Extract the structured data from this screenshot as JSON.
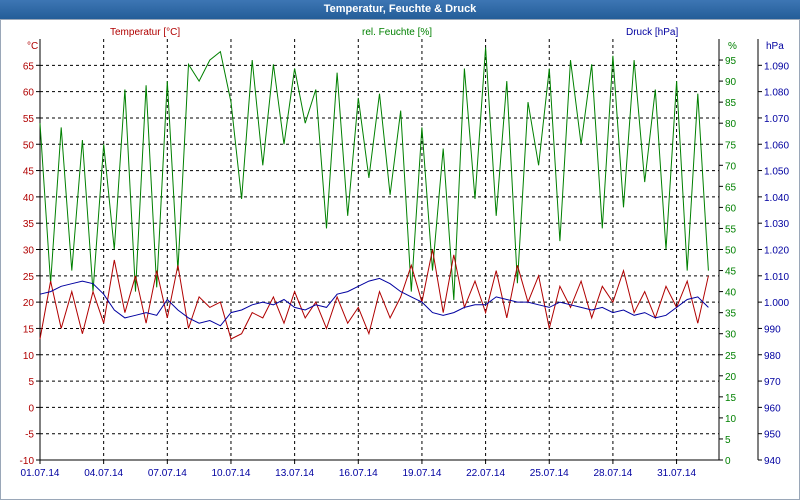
{
  "window": {
    "title": "Temperatur, Feuchte & Druck"
  },
  "chart_data": {
    "type": "line",
    "title": "Temperatur, Feuchte & Druck",
    "colors": {
      "temperature": "#b00000",
      "humidity": "#008000",
      "pressure": "#0000a0"
    },
    "grid": true,
    "x_tick_labels": [
      "01.07.14",
      "04.07.14",
      "07.07.14",
      "10.07.14",
      "13.07.14",
      "16.07.14",
      "19.07.14",
      "22.07.14",
      "25.07.14",
      "28.07.14",
      "31.07.14"
    ],
    "x_range_days": [
      1,
      33
    ],
    "axes": {
      "temperature": {
        "label": "Temperatur [°C]",
        "unit": "°C",
        "ylim": [
          -10,
          70
        ],
        "ticks": [
          "-10",
          "-5",
          "0",
          "5",
          "10",
          "15",
          "20",
          "25",
          "30",
          "35",
          "40",
          "45",
          "50",
          "55",
          "60",
          "65"
        ]
      },
      "humidity": {
        "label": "rel. Feuchte [%]",
        "unit": "%",
        "ylim": [
          0,
          100
        ],
        "ticks": [
          "0",
          "5",
          "10",
          "15",
          "20",
          "25",
          "30",
          "35",
          "40",
          "45",
          "50",
          "55",
          "60",
          "65",
          "70",
          "75",
          "80",
          "85",
          "90",
          "95"
        ]
      },
      "pressure": {
        "label": "Druck [hPa]",
        "unit": "hPa",
        "ylim": [
          940,
          1100
        ],
        "ticks": [
          "940",
          "950",
          "960",
          "970",
          "980",
          "990",
          "1.000",
          "1.010",
          "1.020",
          "1.030",
          "1.040",
          "1.050",
          "1.060",
          "1.070",
          "1.080",
          "1.090"
        ]
      }
    },
    "series": [
      {
        "name": "Temperatur [°C]",
        "axis": "temperature",
        "x": [
          1,
          1.5,
          2,
          2.5,
          3,
          3.5,
          4,
          4.5,
          5,
          5.5,
          6,
          6.5,
          7,
          7.5,
          8,
          8.5,
          9,
          9.5,
          10,
          10.5,
          11,
          11.5,
          12,
          12.5,
          13,
          13.5,
          14,
          14.5,
          15,
          15.5,
          16,
          16.5,
          17,
          17.5,
          18,
          18.5,
          19,
          19.5,
          20,
          20.5,
          21,
          21.5,
          22,
          22.5,
          23,
          23.5,
          24,
          24.5,
          25,
          25.5,
          26,
          26.5,
          27,
          27.5,
          28,
          28.5,
          29,
          29.5,
          30,
          30.5,
          31,
          31.5,
          32,
          32.5
        ],
        "values": [
          13,
          24,
          15,
          22,
          14,
          22,
          16,
          28,
          18,
          25,
          16,
          26,
          17,
          27,
          15,
          21,
          19,
          20,
          13,
          14,
          18,
          17,
          21,
          16,
          22,
          17,
          20,
          15,
          21,
          16,
          19,
          14,
          22,
          17,
          21,
          27,
          20,
          30,
          18,
          29,
          19,
          24,
          18,
          26,
          17,
          27,
          20,
          25,
          15,
          23,
          19,
          24,
          17,
          23,
          20,
          26,
          18,
          22,
          17,
          23,
          19,
          24,
          16,
          25
        ]
      },
      {
        "name": "rel. Feuchte [%]",
        "axis": "humidity",
        "x": [
          1,
          1.5,
          2,
          2.5,
          3,
          3.5,
          4,
          4.5,
          5,
          5.5,
          6,
          6.5,
          7,
          7.5,
          8,
          8.5,
          9,
          9.5,
          10,
          10.5,
          11,
          11.5,
          12,
          12.5,
          13,
          13.5,
          14,
          14.5,
          15,
          15.5,
          16,
          16.5,
          17,
          17.5,
          18,
          18.5,
          19,
          19.5,
          20,
          20.5,
          21,
          21.5,
          22,
          22.5,
          23,
          23.5,
          24,
          24.5,
          25,
          25.5,
          26,
          26.5,
          27,
          27.5,
          28,
          28.5,
          29,
          29.5,
          30,
          30.5,
          31,
          31.5,
          32,
          32.5
        ],
        "values": [
          80,
          42,
          79,
          45,
          76,
          40,
          75,
          50,
          88,
          40,
          89,
          41,
          90,
          45,
          94,
          90,
          95,
          97,
          85,
          62,
          95,
          70,
          94,
          75,
          93,
          80,
          88,
          55,
          92,
          58,
          86,
          67,
          87,
          63,
          83,
          40,
          79,
          45,
          74,
          38,
          93,
          62,
          98,
          58,
          90,
          42,
          85,
          70,
          93,
          52,
          95,
          75,
          94,
          55,
          96,
          60,
          95,
          66,
          88,
          50,
          90,
          45,
          87,
          45
        ]
      },
      {
        "name": "Druck [hPa]",
        "axis": "pressure",
        "x": [
          1,
          1.5,
          2,
          2.5,
          3,
          3.5,
          4,
          4.5,
          5,
          5.5,
          6,
          6.5,
          7,
          7.5,
          8,
          8.5,
          9,
          9.5,
          10,
          10.5,
          11,
          11.5,
          12,
          12.5,
          13,
          13.5,
          14,
          14.5,
          15,
          15.5,
          16,
          16.5,
          17,
          17.5,
          18,
          18.5,
          19,
          19.5,
          20,
          20.5,
          21,
          21.5,
          22,
          22.5,
          23,
          23.5,
          24,
          24.5,
          25,
          25.5,
          26,
          26.5,
          27,
          27.5,
          28,
          28.5,
          29,
          29.5,
          30,
          30.5,
          31,
          31.5,
          32,
          32.5
        ],
        "values": [
          1003,
          1004,
          1006,
          1007,
          1008,
          1007,
          1003,
          997,
          994,
          995,
          996,
          995,
          1001,
          997,
          994,
          992,
          993,
          991,
          996,
          997,
          999,
          1000,
          999,
          1001,
          998,
          997,
          999,
          998,
          1003,
          1004,
          1006,
          1008,
          1009,
          1007,
          1004,
          1002,
          1000,
          996,
          995,
          996,
          998,
          999,
          999,
          1002,
          1001,
          1000,
          1000,
          999,
          998,
          1000,
          999,
          998,
          997,
          998,
          996,
          997,
          995,
          996,
          994,
          995,
          998,
          1001,
          1002,
          998
        ]
      }
    ]
  }
}
